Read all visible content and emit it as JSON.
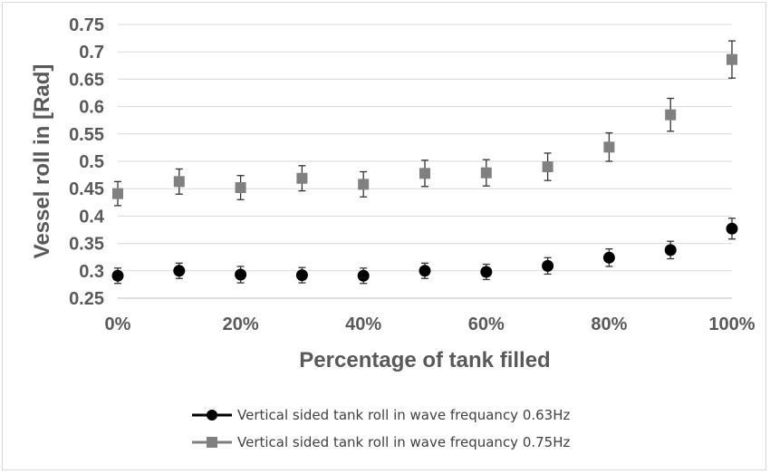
{
  "chart_data": {
    "type": "scatter",
    "title": "",
    "xlabel": "Percentage of tank filled",
    "ylabel": "Vessel roll in [Rad]",
    "x": [
      0,
      10,
      20,
      30,
      40,
      50,
      60,
      70,
      80,
      90,
      100
    ],
    "x_tick_labels": [
      "0%",
      "20%",
      "40%",
      "60%",
      "80%",
      "100%"
    ],
    "x_tick_values": [
      0,
      20,
      40,
      60,
      80,
      100
    ],
    "y_tick_labels": [
      "0.25",
      "0.3",
      "0.35",
      "0.4",
      "0.45",
      "0.5",
      "0.55",
      "0.6",
      "0.65",
      "0.7",
      "0.75"
    ],
    "xlim": [
      0,
      100
    ],
    "ylim": [
      0.25,
      0.75
    ],
    "grid": "horizontal",
    "legend_position": "bottom",
    "series": [
      {
        "name": "Vertical sided tank roll in wave frequancy 0.63Hz",
        "marker": "circle",
        "color": "#000000",
        "values": [
          0.291,
          0.3,
          0.293,
          0.292,
          0.291,
          0.3,
          0.298,
          0.309,
          0.324,
          0.338,
          0.377
        ],
        "errors": [
          0.014,
          0.014,
          0.015,
          0.014,
          0.014,
          0.014,
          0.014,
          0.015,
          0.016,
          0.016,
          0.019
        ]
      },
      {
        "name": "Vertical sided tank roll in wave frequancy 0.75Hz",
        "marker": "square",
        "color": "#808080",
        "values": [
          0.441,
          0.463,
          0.452,
          0.469,
          0.458,
          0.478,
          0.479,
          0.49,
          0.526,
          0.585,
          0.686
        ],
        "errors": [
          0.022,
          0.023,
          0.022,
          0.023,
          0.023,
          0.024,
          0.024,
          0.025,
          0.026,
          0.03,
          0.034
        ]
      }
    ]
  }
}
